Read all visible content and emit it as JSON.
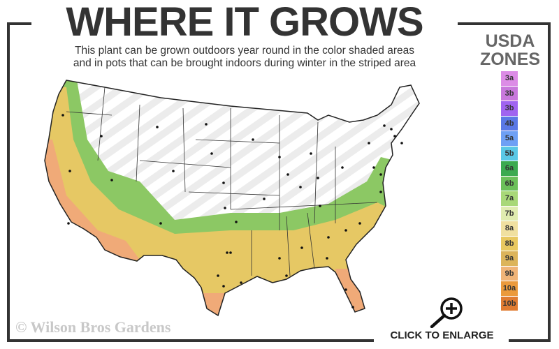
{
  "header": {
    "title": "WHERE IT GROWS",
    "subtitle_line1": "This plant can be grown outdoors year round in the color shaded areas",
    "subtitle_line2": "and in pots that can be brought indoors during winter in the striped area"
  },
  "legend": {
    "title_line1": "USDA",
    "title_line2": "ZONES",
    "zones": [
      {
        "label": "3a",
        "color": "#dc8ce6"
      },
      {
        "label": "3b",
        "color": "#c878dc"
      },
      {
        "label": "3b",
        "color": "#a064f0"
      },
      {
        "label": "4b",
        "color": "#5a78e6"
      },
      {
        "label": "5a",
        "color": "#6ea0f5"
      },
      {
        "label": "5b",
        "color": "#5ac8e6"
      },
      {
        "label": "6a",
        "color": "#3caa50"
      },
      {
        "label": "6b",
        "color": "#6cc05a"
      },
      {
        "label": "7a",
        "color": "#a8d878"
      },
      {
        "label": "7b",
        "color": "#e0ecb0"
      },
      {
        "label": "8a",
        "color": "#f0e0a0"
      },
      {
        "label": "8b",
        "color": "#e8c860"
      },
      {
        "label": "9a",
        "color": "#dcb45a"
      },
      {
        "label": "9b",
        "color": "#f0b478"
      },
      {
        "label": "10a",
        "color": "#eb9a3c"
      },
      {
        "label": "10b",
        "color": "#e07c32"
      }
    ]
  },
  "map": {
    "region": "Contiguous United States",
    "growing_zone_colors": {
      "green": "#8cc864",
      "yellow": "#e6c864",
      "orange": "#f0aa78"
    },
    "striped_area_color": "#eeeeee"
  },
  "footer": {
    "copyright": "© Wilson Bros Gardens",
    "enlarge_label": "CLICK TO ENLARGE",
    "enlarge_icon": "zoom-in-magnifier-icon"
  }
}
